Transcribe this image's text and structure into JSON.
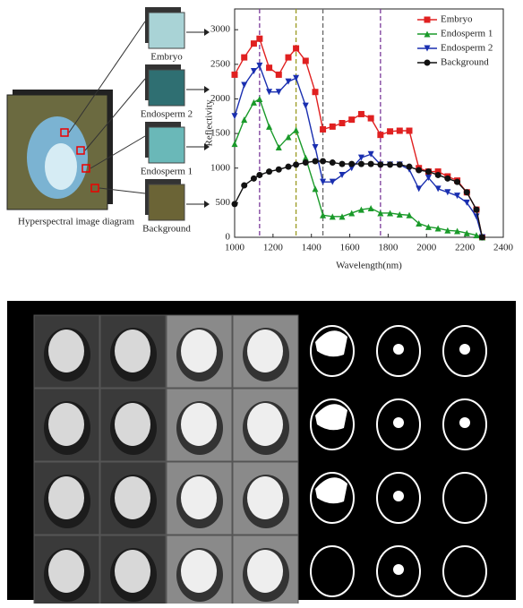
{
  "diagram": {
    "source_label": "Hyperspectral image diagram",
    "parts": [
      {
        "label": "Embryo",
        "color": "#a9d3d6"
      },
      {
        "label": "Endosperm 2",
        "color": "#2f6f72"
      },
      {
        "label": "Endosperm 1",
        "color": "#6ab8b8"
      },
      {
        "label": "Background",
        "color": "#6b6436"
      }
    ]
  },
  "chart_data": {
    "type": "line",
    "x_label": "Wavelength(nm)",
    "y_label": "Reflectivity",
    "x": [
      1000,
      1050,
      1100,
      1130,
      1180,
      1230,
      1280,
      1320,
      1370,
      1420,
      1460,
      1510,
      1560,
      1610,
      1660,
      1710,
      1760,
      1810,
      1860,
      1910,
      1960,
      2010,
      2060,
      2110,
      2160,
      2210,
      2260,
      2290
    ],
    "series": [
      {
        "name": "Embryo",
        "color": "#e02020",
        "marker": "square",
        "values": [
          2350,
          2600,
          2800,
          2870,
          2450,
          2350,
          2600,
          2730,
          2550,
          2100,
          1560,
          1600,
          1650,
          1700,
          1780,
          1720,
          1480,
          1530,
          1540,
          1540,
          1000,
          950,
          950,
          880,
          820,
          650,
          400,
          0
        ]
      },
      {
        "name": "Endosperm 1",
        "color": "#1a9a2a",
        "marker": "triangle-up",
        "values": [
          1350,
          1700,
          1950,
          2000,
          1600,
          1300,
          1450,
          1550,
          1150,
          700,
          320,
          300,
          300,
          350,
          400,
          420,
          350,
          350,
          330,
          320,
          200,
          150,
          130,
          100,
          90,
          60,
          30,
          0
        ]
      },
      {
        "name": "Endosperm 2",
        "color": "#1a2fb0",
        "marker": "triangle-down",
        "values": [
          1750,
          2200,
          2400,
          2480,
          2100,
          2100,
          2250,
          2300,
          1900,
          1300,
          800,
          800,
          900,
          1000,
          1150,
          1200,
          1050,
          1050,
          1050,
          980,
          700,
          860,
          700,
          650,
          600,
          500,
          300,
          0
        ]
      },
      {
        "name": "Background",
        "color": "#111111",
        "marker": "circle",
        "values": [
          480,
          750,
          850,
          900,
          950,
          980,
          1020,
          1050,
          1080,
          1100,
          1100,
          1080,
          1060,
          1060,
          1060,
          1060,
          1050,
          1050,
          1050,
          1020,
          970,
          950,
          900,
          850,
          800,
          650,
          400,
          0
        ]
      }
    ],
    "reference_lines": [
      {
        "value": 1130,
        "color": "#7a3a9a"
      },
      {
        "value": 1320,
        "color": "#9a9a20"
      },
      {
        "value": 1460,
        "color": "#666666"
      },
      {
        "value": 1760,
        "color": "#7a3a9a"
      }
    ],
    "xlim": [
      1000,
      2400
    ],
    "xticks": [
      1000,
      1200,
      1400,
      1600,
      1800,
      2000,
      2200,
      2400
    ],
    "ylim": [
      0,
      3300
    ],
    "yticks": [
      0,
      500,
      1000,
      1500,
      2000,
      2500,
      3000
    ]
  }
}
